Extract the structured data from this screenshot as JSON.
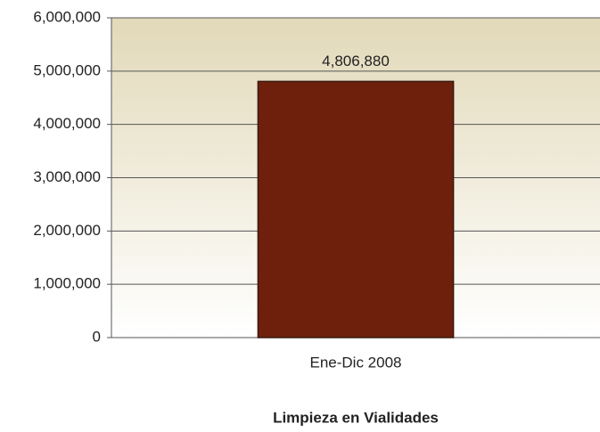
{
  "chart_data": {
    "type": "bar",
    "title": "Limpieza en Vialidades",
    "categories": [
      "Ene-Dic 2008"
    ],
    "values": [
      4806880
    ],
    "value_labels": [
      "4,806,880"
    ],
    "color": "#6e200c",
    "ylim": [
      0,
      6000000
    ],
    "yticks": [
      0,
      {
        "value": 1000000,
        "label": "1,000,000"
      },
      {
        "value": 2000000,
        "label": "2,000,000"
      },
      {
        "value": 3000000,
        "label": "3,000,000"
      },
      {
        "value": 4000000,
        "label": "4,000,000"
      },
      {
        "value": 5000000,
        "label": "5,000,000"
      },
      {
        "value": 6000000,
        "label": "6,000,000"
      }
    ],
    "grid": true
  }
}
